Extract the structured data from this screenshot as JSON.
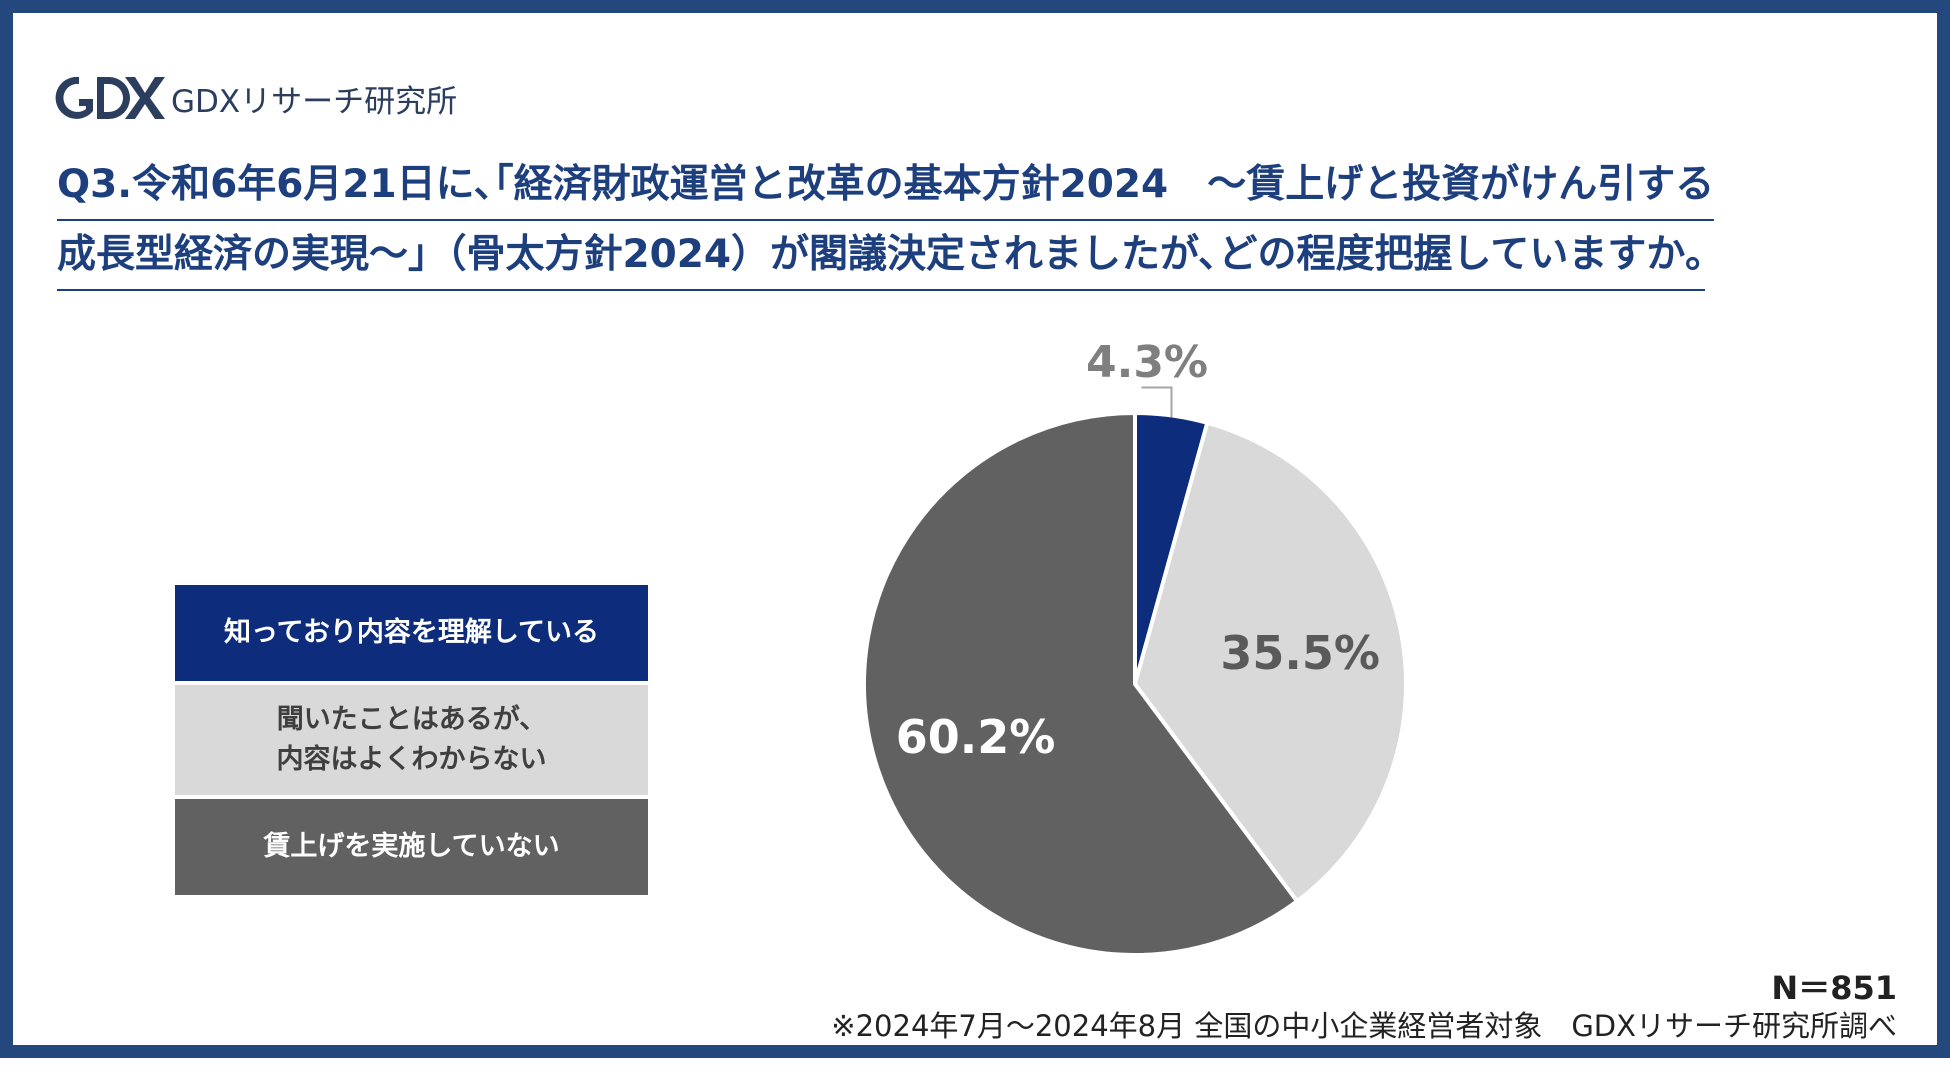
{
  "brand": {
    "logo_mark": "GDX",
    "name": "GDXリサーチ研究所"
  },
  "question": {
    "line1": "Q3.令和6年6月21日に､｢経済財政運営と改革の基本方針2024　～賃上げと投資がけん引する",
    "line2": "成長型経済の実現～｣（骨太方針2024）が閣議決定されましたが､どの程度把握していますか｡"
  },
  "chart_data": {
    "type": "pie",
    "start_angle": "top",
    "direction": "clockwise",
    "slices": [
      {
        "name": "知っており内容を理解している",
        "value": 4.3,
        "label": "4.3%",
        "color": "#0e2c7c"
      },
      {
        "name": "聞いたことはあるが、\n内容はよくわからない",
        "value": 35.5,
        "label": "35.5%",
        "color": "#d9d9d9"
      },
      {
        "name": "賃上げを実施していない",
        "value": 60.2,
        "label": "60.2%",
        "color": "#616161"
      }
    ],
    "legend": {
      "placement": "left",
      "items": [
        {
          "line1": "知っており内容を理解している",
          "line2": ""
        },
        {
          "line1": "聞いたことはあるが、",
          "line2": "内容はよくわからない"
        },
        {
          "line1": "賃上げを実施していない",
          "line2": ""
        }
      ]
    },
    "label_colors": [
      "#7f7f7f",
      "#5a5a5a",
      "#ffffff"
    ]
  },
  "footer": {
    "sample": "N＝851",
    "note": "※2024年7月～2024年8月 全国の中小企業経営者対象　GDXリサーチ研究所調べ"
  }
}
